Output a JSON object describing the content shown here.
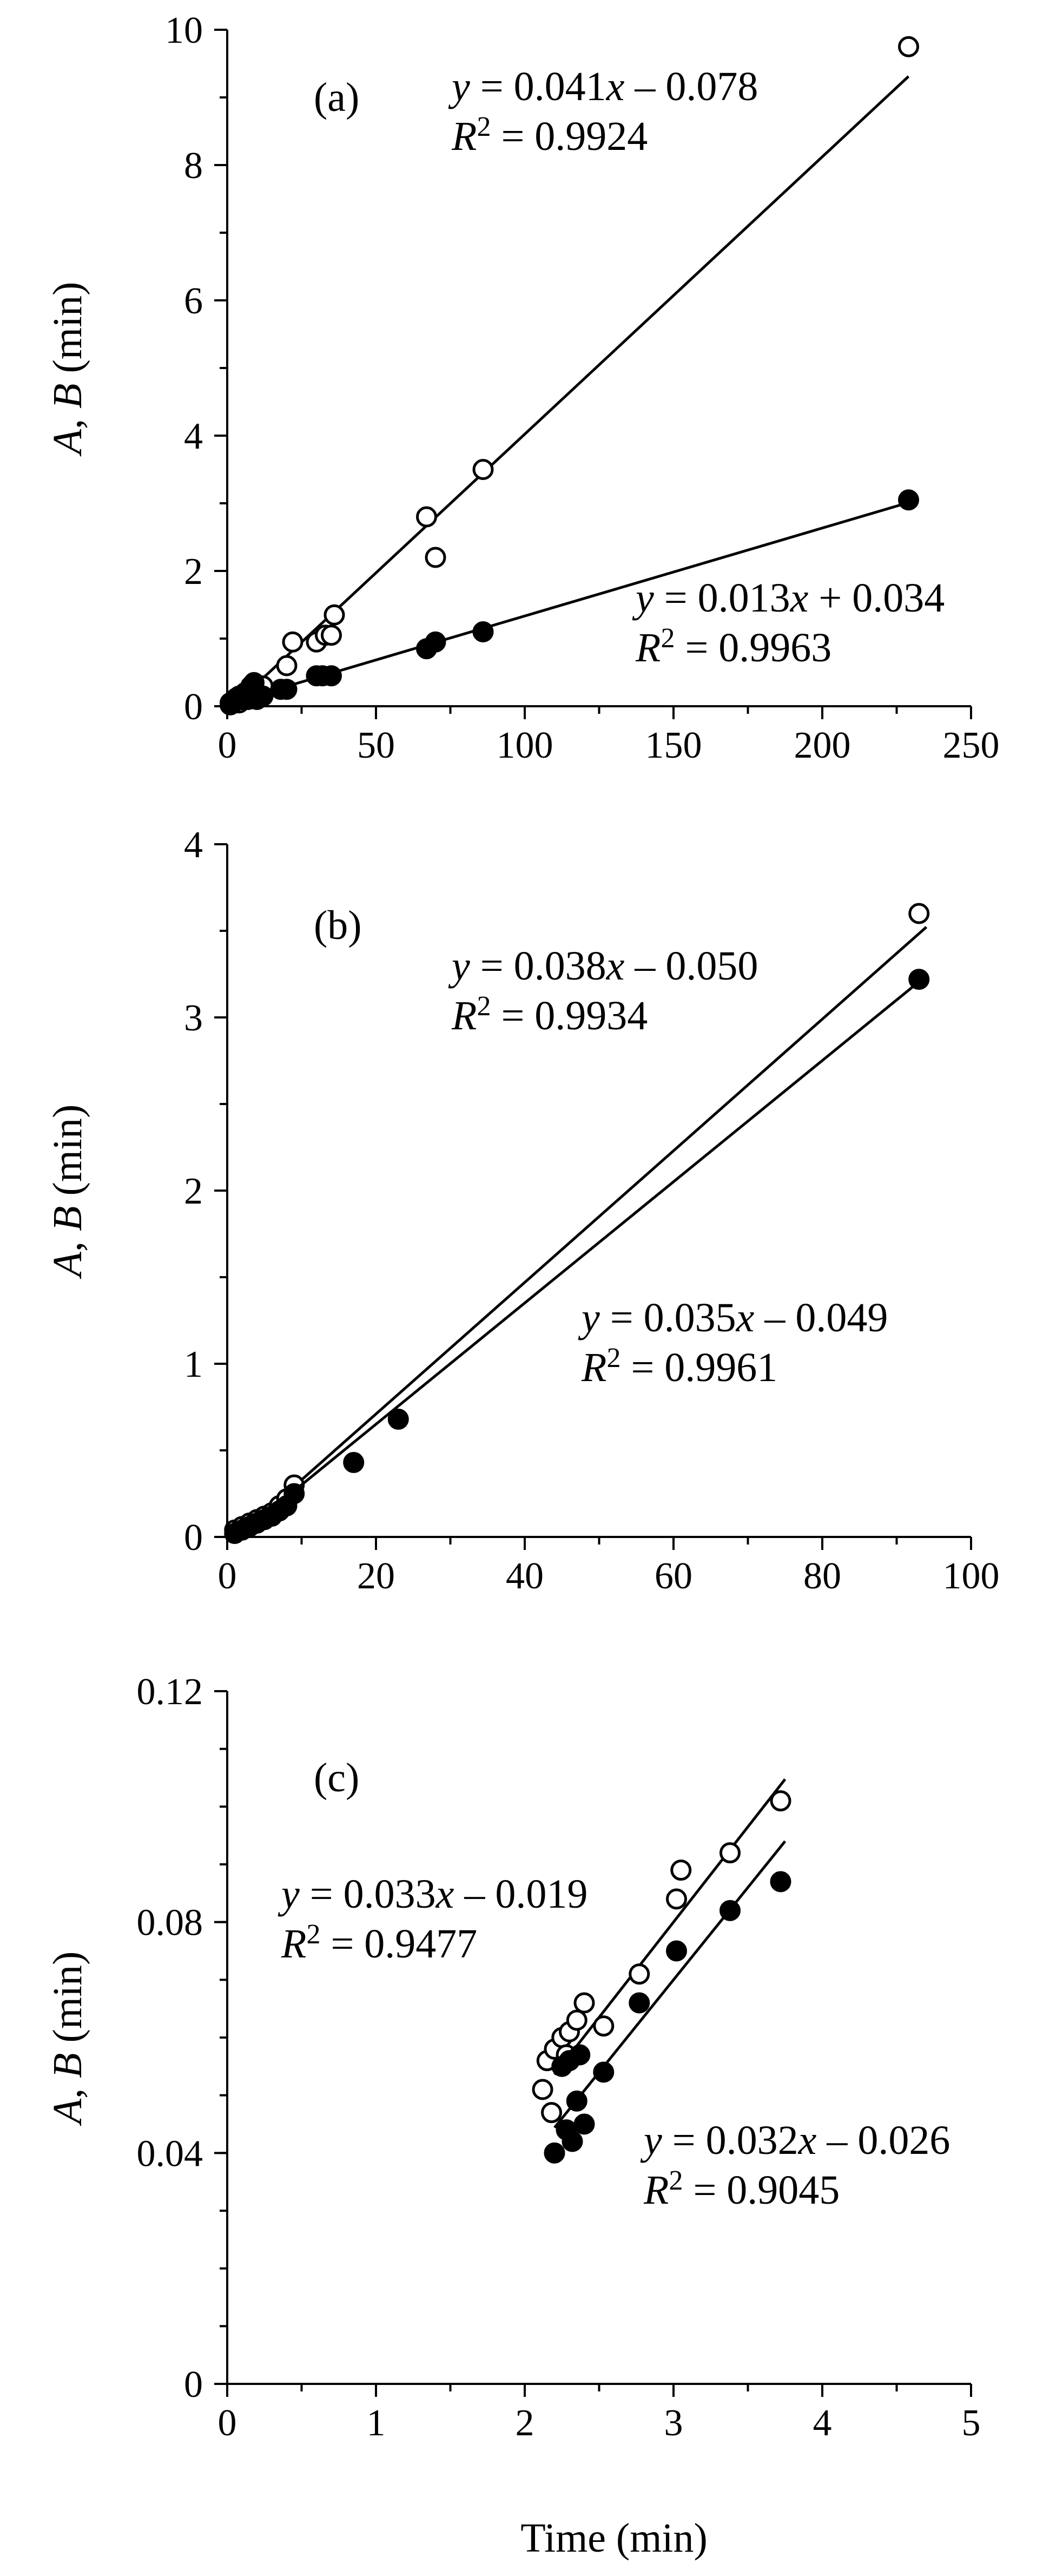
{
  "figure": {
    "xlabel": "Time (min)"
  },
  "chart_data": [
    {
      "type": "scatter",
      "panel": "(a)",
      "ylabel": "A, B (min)",
      "xlim": [
        0,
        250
      ],
      "ylim": [
        0,
        10
      ],
      "x_ticks": [
        0,
        50,
        100,
        150,
        200,
        250
      ],
      "y_ticks": [
        0,
        2,
        4,
        6,
        8,
        10
      ],
      "x_minor": 25,
      "y_minor": 1,
      "series": [
        {
          "marker": "open",
          "points": [
            [
              1,
              0.05
            ],
            [
              2,
              0.08
            ],
            [
              3,
              0.12
            ],
            [
              4,
              0.05
            ],
            [
              5,
              0.15
            ],
            [
              6,
              0.2
            ],
            [
              7,
              0.1
            ],
            [
              8,
              0.25
            ],
            [
              9,
              0.3
            ],
            [
              10,
              0.2
            ],
            [
              12,
              0.3
            ],
            [
              20,
              0.6
            ],
            [
              22,
              0.95
            ],
            [
              30,
              0.95
            ],
            [
              33,
              1.05
            ],
            [
              35,
              1.05
            ],
            [
              36,
              1.35
            ],
            [
              67,
              2.8
            ],
            [
              70,
              2.2
            ],
            [
              86,
              3.5
            ],
            [
              229,
              9.75
            ]
          ],
          "fit": {
            "slope": 0.041,
            "intercept": -0.078,
            "x_range": [
              0,
              229
            ]
          },
          "equation": "y = 0.041x – 0.078",
          "r2": "R2 = 0.9924"
        },
        {
          "marker": "filled",
          "points": [
            [
              1,
              0.02
            ],
            [
              2,
              0.05
            ],
            [
              3,
              0.1
            ],
            [
              4,
              0.15
            ],
            [
              5,
              0.1
            ],
            [
              6,
              0.2
            ],
            [
              7,
              0.15
            ],
            [
              8,
              0.3
            ],
            [
              9,
              0.35
            ],
            [
              10,
              0.1
            ],
            [
              12,
              0.15
            ],
            [
              18,
              0.25
            ],
            [
              20,
              0.25
            ],
            [
              30,
              0.45
            ],
            [
              32,
              0.45
            ],
            [
              35,
              0.45
            ],
            [
              67,
              0.85
            ],
            [
              70,
              0.95
            ],
            [
              86,
              1.1
            ],
            [
              229,
              3.05
            ]
          ],
          "fit": {
            "slope": 0.013,
            "intercept": 0.034,
            "x_range": [
              0,
              229
            ]
          },
          "equation": "y = 0.013x + 0.034",
          "r2": "R2 = 0.9963"
        }
      ],
      "annotations": {
        "eq1_pos": "upper-middle",
        "eq2_pos": "lower-right"
      }
    },
    {
      "type": "scatter",
      "panel": "(b)",
      "ylabel": "A, B (min)",
      "xlim": [
        0,
        100
      ],
      "ylim": [
        0,
        4
      ],
      "x_ticks": [
        0,
        20,
        40,
        60,
        80,
        100
      ],
      "y_ticks": [
        0,
        1,
        2,
        3,
        4
      ],
      "x_minor": 10,
      "y_minor": 0.5,
      "series": [
        {
          "marker": "open",
          "points": [
            [
              1,
              0.04
            ],
            [
              2,
              0.06
            ],
            [
              3,
              0.08
            ],
            [
              4,
              0.1
            ],
            [
              5,
              0.12
            ],
            [
              6,
              0.14
            ],
            [
              7,
              0.18
            ],
            [
              8,
              0.22
            ],
            [
              9,
              0.3
            ],
            [
              93,
              3.6
            ]
          ],
          "fit": {
            "slope": 0.038,
            "intercept": -0.05,
            "x_range": [
              1.5,
              94
            ]
          },
          "equation": "y = 0.038x – 0.050",
          "r2": "R2 = 0.9934"
        },
        {
          "marker": "filled",
          "points": [
            [
              1,
              0.02
            ],
            [
              2,
              0.04
            ],
            [
              3,
              0.06
            ],
            [
              4,
              0.08
            ],
            [
              5,
              0.1
            ],
            [
              6,
              0.12
            ],
            [
              7,
              0.15
            ],
            [
              8,
              0.18
            ],
            [
              9,
              0.25
            ],
            [
              17,
              0.43
            ],
            [
              23,
              0.68
            ],
            [
              93,
              3.22
            ]
          ],
          "fit": {
            "slope": 0.035,
            "intercept": -0.049,
            "x_range": [
              1.5,
              94
            ]
          },
          "equation": "y = 0.035x – 0.049",
          "r2": "R2 = 0.9961"
        }
      ]
    },
    {
      "type": "scatter",
      "panel": "(c)",
      "ylabel": "A, B (min)",
      "xlim": [
        0,
        5
      ],
      "ylim": [
        0,
        0.12
      ],
      "x_ticks": [
        0,
        1,
        2,
        3,
        4,
        5
      ],
      "y_ticks": [
        0,
        0.04,
        0.08,
        0.12
      ],
      "y_tick_labels": [
        "0",
        "0.04",
        "0.08",
        "0.12"
      ],
      "x_minor": 0.5,
      "y_minor": 0.01,
      "series": [
        {
          "marker": "open",
          "points": [
            [
              2.12,
              0.051
            ],
            [
              2.15,
              0.056
            ],
            [
              2.18,
              0.047
            ],
            [
              2.2,
              0.058
            ],
            [
              2.25,
              0.06
            ],
            [
              2.28,
              0.057
            ],
            [
              2.3,
              0.061
            ],
            [
              2.35,
              0.063
            ],
            [
              2.4,
              0.066
            ],
            [
              2.53,
              0.062
            ],
            [
              2.77,
              0.071
            ],
            [
              3.02,
              0.084
            ],
            [
              3.05,
              0.089
            ],
            [
              3.38,
              0.092
            ],
            [
              3.72,
              0.101
            ]
          ],
          "fit": {
            "slope": 0.033,
            "intercept": -0.019,
            "x_range": [
              2.2,
              3.75
            ]
          },
          "equation": "y = 0.033x – 0.019",
          "r2": "R2 = 0.9477"
        },
        {
          "marker": "filled",
          "points": [
            [
              2.2,
              0.04
            ],
            [
              2.25,
              0.055
            ],
            [
              2.28,
              0.044
            ],
            [
              2.3,
              0.056
            ],
            [
              2.32,
              0.042
            ],
            [
              2.35,
              0.049
            ],
            [
              2.37,
              0.057
            ],
            [
              2.4,
              0.045
            ],
            [
              2.53,
              0.054
            ],
            [
              2.77,
              0.066
            ],
            [
              3.02,
              0.075
            ],
            [
              3.38,
              0.082
            ],
            [
              3.72,
              0.087
            ]
          ],
          "fit": {
            "slope": 0.032,
            "intercept": -0.026,
            "x_range": [
              2.2,
              3.75
            ]
          },
          "equation": "y = 0.032x – 0.026",
          "r2": "R2 = 0.9045"
        }
      ]
    }
  ]
}
